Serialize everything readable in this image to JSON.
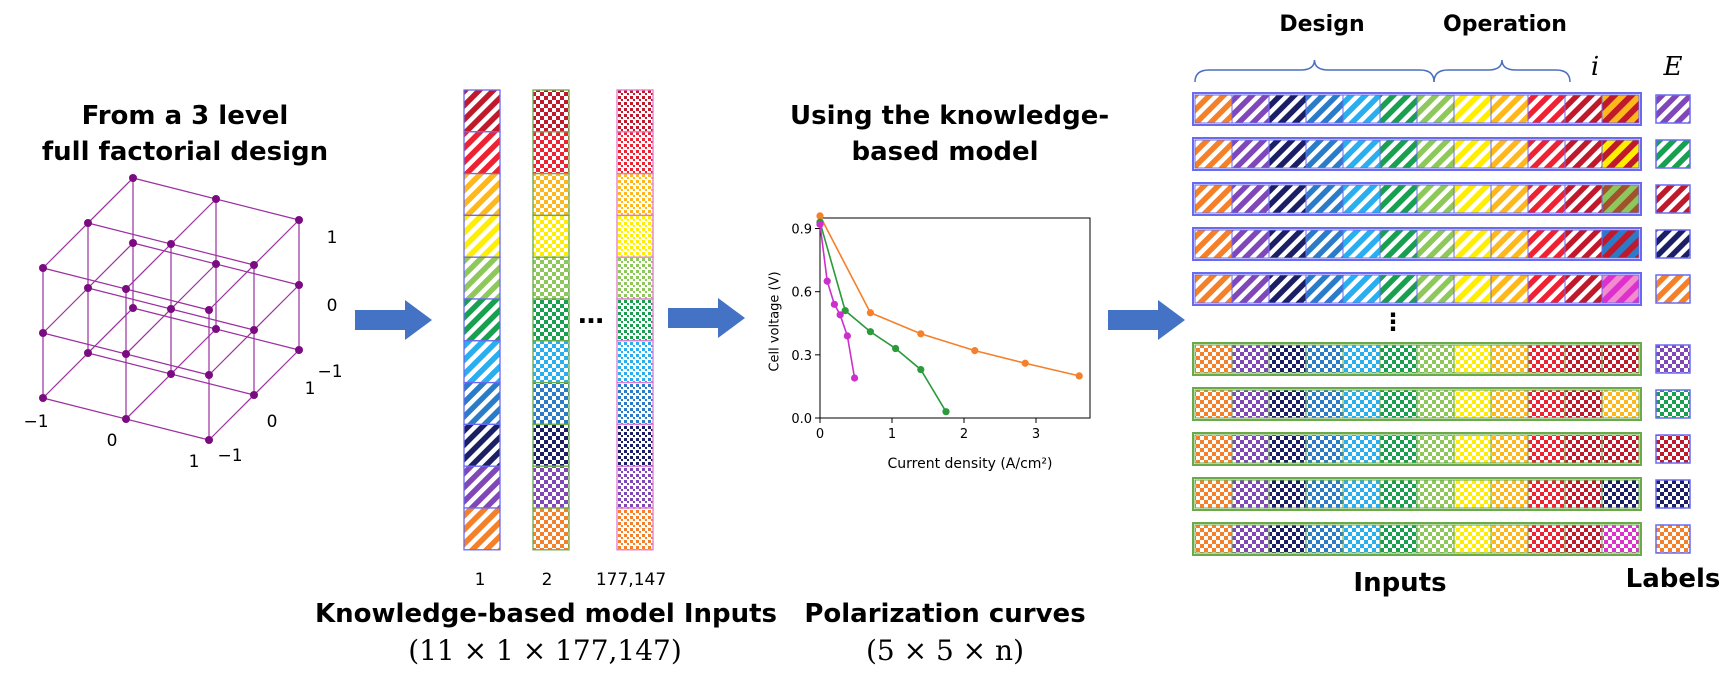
{
  "colors": {
    "orange": "#f5802a",
    "purple": "#7f47b8",
    "navy": "#1b1f66",
    "blue": "#2a7bc8",
    "cyan": "#29aef0",
    "green": "#18a050",
    "lightgreen": "#8ec85a",
    "yellow": "#ffee00",
    "amber": "#ffb81c",
    "red": "#ee2233",
    "darkred": "#c0192c",
    "magenta": "#dd30cc",
    "arrow": "#4472c4",
    "cube": "#9b2fa0",
    "cube_point": "#7b0b80"
  },
  "section1": {
    "title_line1": "From a 3 level",
    "title_line2": "full factorial design",
    "axis_ticks": {
      "z": [
        "1",
        "0",
        "−1"
      ],
      "y": [
        "1",
        "0",
        "−1"
      ],
      "x": [
        "−1",
        "0",
        "1"
      ]
    }
  },
  "section2": {
    "column_labels": [
      "1",
      "2",
      "177,147"
    ],
    "ellipsis": "…",
    "title": "Knowledge-based model Inputs",
    "dims": "(11 × 1 × 177,147)"
  },
  "section3": {
    "title_line1": "Using the knowledge-",
    "title_line2": "based model",
    "title": "Polarization curves",
    "dims": "(5 × 5 × n)"
  },
  "section4": {
    "group_design": "Design",
    "group_operation": "Operation",
    "col_i": "i",
    "col_e": "E",
    "ellipsis": "⋮",
    "inputs_label": "Inputs",
    "labels_label": "Labels"
  },
  "chart_data": {
    "type": "line",
    "title": "",
    "xlabel": "Current density (A/cm²)",
    "ylabel": "Cell voltage (V)",
    "xlim": [
      0,
      3.75
    ],
    "ylim": [
      0,
      0.95
    ],
    "xticks": [
      0,
      1,
      2,
      3
    ],
    "yticks": [
      0.0,
      0.3,
      0.6,
      0.9
    ],
    "ytick_labels": [
      "0.0",
      "0.3",
      "0.6",
      "0.9"
    ],
    "series": [
      {
        "name": "orange",
        "color": "#f5802a",
        "x": [
          0.0,
          0.7,
          1.4,
          2.15,
          2.85,
          3.6
        ],
        "y": [
          0.96,
          0.5,
          0.4,
          0.32,
          0.26,
          0.2
        ]
      },
      {
        "name": "green",
        "color": "#2a9a3a",
        "x": [
          0.0,
          0.35,
          0.7,
          1.05,
          1.4,
          1.75
        ],
        "y": [
          0.93,
          0.51,
          0.41,
          0.33,
          0.23,
          0.03
        ]
      },
      {
        "name": "magenta",
        "color": "#cc30cc",
        "x": [
          0.0,
          0.1,
          0.2,
          0.28,
          0.38,
          0.48
        ],
        "y": [
          0.92,
          0.65,
          0.54,
          0.49,
          0.39,
          0.19
        ]
      }
    ]
  }
}
